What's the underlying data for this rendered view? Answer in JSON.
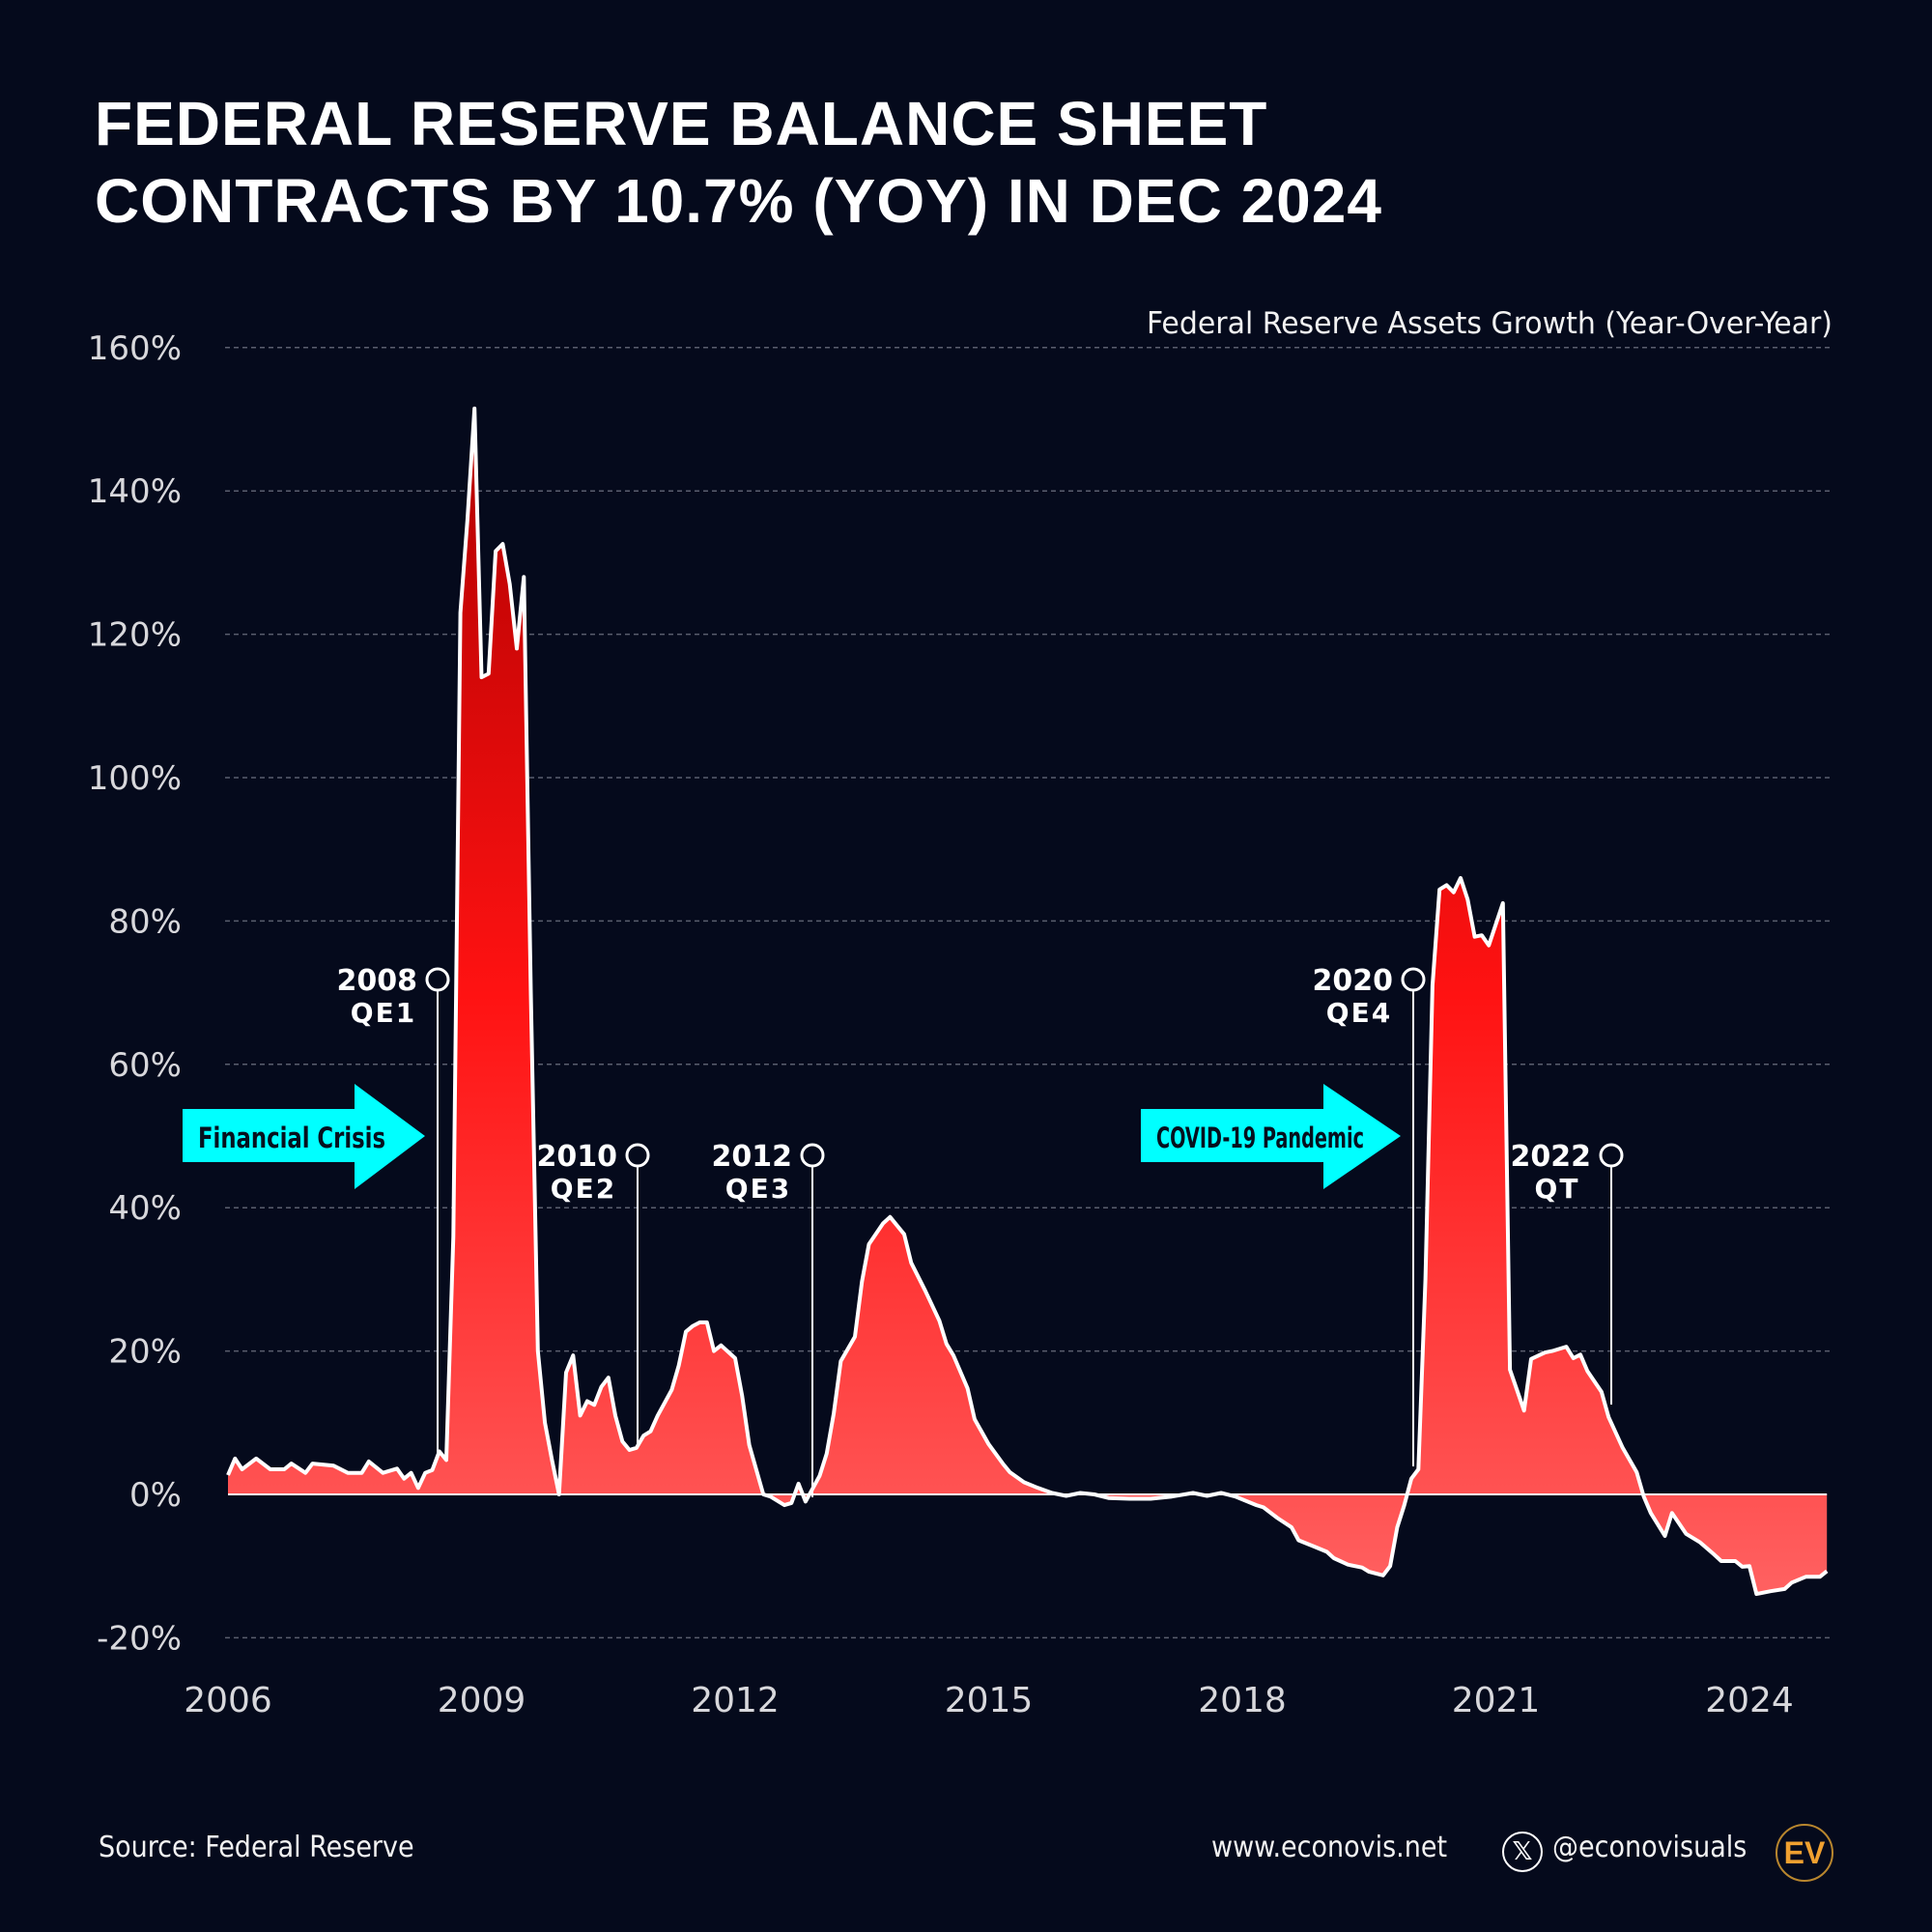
{
  "title": {
    "line1": "FEDERAL RESERVE BALANCE SHEET",
    "line2": "CONTRACTS BY 10.7% (YOY) IN DEC 2024"
  },
  "chart_data": {
    "type": "area",
    "subtitle": "Federal Reserve Assets Growth (Year-Over-Year)",
    "xlabel": "",
    "ylabel": "",
    "ylim": [
      -20,
      160
    ],
    "xlim": [
      "2006-01",
      "2024-12"
    ],
    "grid": true,
    "y_ticks": [
      "160%",
      "140%",
      "120%",
      "100%",
      "80%",
      "60%",
      "40%",
      "20%",
      "0%",
      "-20%"
    ],
    "y_tick_values": [
      160,
      140,
      120,
      100,
      80,
      60,
      40,
      20,
      0,
      -20
    ],
    "x_ticks": [
      "2006",
      "2009",
      "2012",
      "2015",
      "2018",
      "2021",
      "2024"
    ],
    "colors": {
      "fill_top": "#c20000",
      "fill_mid": "#ff1010",
      "fill_bottom": "#ff5a5a",
      "line": "#ffffff",
      "arrow": "#00ffff",
      "background": "#050a1c"
    },
    "series": [
      {
        "points": [
          [
            "2006-01",
            2.7
          ],
          [
            "2006-02",
            5
          ],
          [
            "2006-03",
            3.5
          ],
          [
            "2006-05",
            5
          ],
          [
            "2006-07",
            3.5
          ],
          [
            "2006-09",
            3.5
          ],
          [
            "2006-10",
            4.3
          ],
          [
            "2006-12",
            3
          ],
          [
            "2007-01",
            4.3
          ],
          [
            "2007-04",
            4
          ],
          [
            "2007-06",
            3
          ],
          [
            "2007-08",
            3
          ],
          [
            "2007-09",
            4.6
          ],
          [
            "2007-11",
            3
          ],
          [
            "2008-01",
            3.6
          ],
          [
            "2008-02",
            2.2
          ],
          [
            "2008-03",
            3
          ],
          [
            "2008-04",
            0.9
          ],
          [
            "2008-05",
            3
          ],
          [
            "2008-06",
            3.4
          ],
          [
            "2008-07",
            6
          ],
          [
            "2008-08",
            4.8
          ],
          [
            "2008-09",
            36
          ],
          [
            "2008-10",
            123
          ],
          [
            "2008-11",
            136
          ],
          [
            "2008-12",
            151.5
          ],
          [
            "2009-01",
            114
          ],
          [
            "2009-02",
            114.5
          ],
          [
            "2009-03",
            131.6
          ],
          [
            "2009-04",
            132.6
          ],
          [
            "2009-05",
            127
          ],
          [
            "2009-06",
            118
          ],
          [
            "2009-07",
            128
          ],
          [
            "2009-08",
            70
          ],
          [
            "2009-09",
            20
          ],
          [
            "2009-10",
            10
          ],
          [
            "2009-11",
            4.8
          ],
          [
            "2009-12",
            0
          ],
          [
            "2010-01",
            17
          ],
          [
            "2010-02",
            19.4
          ],
          [
            "2010-03",
            11
          ],
          [
            "2010-04",
            13
          ],
          [
            "2010-05",
            12.5
          ],
          [
            "2010-06",
            15
          ],
          [
            "2010-07",
            16.3
          ],
          [
            "2010-08",
            11
          ],
          [
            "2010-09",
            7.4
          ],
          [
            "2010-10",
            6.2
          ],
          [
            "2010-11",
            6.5
          ],
          [
            "2010-12",
            8.2
          ],
          [
            "2011-01",
            8.8
          ],
          [
            "2011-02",
            11
          ],
          [
            "2011-04",
            14.6
          ],
          [
            "2011-05",
            18
          ],
          [
            "2011-06",
            22.7
          ],
          [
            "2011-07",
            23.5
          ],
          [
            "2011-08",
            24
          ],
          [
            "2011-09",
            24
          ],
          [
            "2011-10",
            20
          ],
          [
            "2011-11",
            20.8
          ],
          [
            "2012-01",
            19
          ],
          [
            "2012-02",
            13.7
          ],
          [
            "2012-03",
            6.9
          ],
          [
            "2012-05",
            0
          ],
          [
            "2012-06",
            -0.3
          ],
          [
            "2012-08",
            -1.5
          ],
          [
            "2012-09",
            -1.2
          ],
          [
            "2012-10",
            1.5
          ],
          [
            "2012-11",
            -1
          ],
          [
            "2013-01",
            2.6
          ],
          [
            "2013-02",
            5.7
          ],
          [
            "2013-03",
            11.3
          ],
          [
            "2013-04",
            18.6
          ],
          [
            "2013-06",
            22
          ],
          [
            "2013-07",
            29.7
          ],
          [
            "2013-08",
            34.9
          ],
          [
            "2013-10",
            37.8
          ],
          [
            "2013-11",
            38.7
          ],
          [
            "2014-01",
            36.3
          ],
          [
            "2014-02",
            32.3
          ],
          [
            "2014-04",
            28.4
          ],
          [
            "2014-06",
            24.2
          ],
          [
            "2014-07",
            21
          ],
          [
            "2014-08",
            19.4
          ],
          [
            "2014-10",
            14.8
          ],
          [
            "2014-11",
            10.5
          ],
          [
            "2015-01",
            7
          ],
          [
            "2015-03",
            4.3
          ],
          [
            "2015-04",
            3.1
          ],
          [
            "2015-06",
            1.7
          ],
          [
            "2015-08",
            0.9
          ],
          [
            "2015-10",
            0.2
          ],
          [
            "2015-12",
            -0.2
          ],
          [
            "2016-02",
            0.2
          ],
          [
            "2016-04",
            0
          ],
          [
            "2016-06",
            -0.5
          ],
          [
            "2016-09",
            -0.6
          ],
          [
            "2016-12",
            -0.6
          ],
          [
            "2017-03",
            -0.3
          ],
          [
            "2017-06",
            0.2
          ],
          [
            "2017-08",
            -0.2
          ],
          [
            "2017-10",
            0.2
          ],
          [
            "2017-12",
            -0.3
          ],
          [
            "2018-03",
            -1.5
          ],
          [
            "2018-04",
            -1.8
          ],
          [
            "2018-06",
            -3.3
          ],
          [
            "2018-08",
            -4.6
          ],
          [
            "2018-09",
            -6.4
          ],
          [
            "2018-11",
            -7.2
          ],
          [
            "2019-01",
            -8
          ],
          [
            "2019-02",
            -8.9
          ],
          [
            "2019-04",
            -9.8
          ],
          [
            "2019-06",
            -10.2
          ],
          [
            "2019-07",
            -10.8
          ],
          [
            "2019-09",
            -11.3
          ],
          [
            "2019-10",
            -10
          ],
          [
            "2019-11",
            -4.6
          ],
          [
            "2019-12",
            -1.5
          ],
          [
            "2020-01",
            2.2
          ],
          [
            "2020-02",
            3.5
          ],
          [
            "2020-03",
            30
          ],
          [
            "2020-04",
            71
          ],
          [
            "2020-05",
            84.4
          ],
          [
            "2020-06",
            85
          ],
          [
            "2020-07",
            84
          ],
          [
            "2020-08",
            86
          ],
          [
            "2020-09",
            83
          ],
          [
            "2020-10",
            77.8
          ],
          [
            "2020-11",
            78
          ],
          [
            "2020-12",
            76.6
          ],
          [
            "2021-02",
            82.5
          ],
          [
            "2021-03",
            17.4
          ],
          [
            "2021-05",
            11.7
          ],
          [
            "2021-06",
            18.9
          ],
          [
            "2021-08",
            19.8
          ],
          [
            "2021-09",
            20
          ],
          [
            "2021-11",
            20.6
          ],
          [
            "2021-12",
            19
          ],
          [
            "2022-01",
            19.5
          ],
          [
            "2022-02",
            17.2
          ],
          [
            "2022-04",
            14.3
          ],
          [
            "2022-05",
            10.8
          ],
          [
            "2022-07",
            6.5
          ],
          [
            "2022-09",
            3.1
          ],
          [
            "2022-10",
            -0.3
          ],
          [
            "2022-11",
            -2.6
          ],
          [
            "2023-01",
            -5.8
          ],
          [
            "2023-02",
            -2.6
          ],
          [
            "2023-04",
            -5.5
          ],
          [
            "2023-06",
            -6.7
          ],
          [
            "2023-08",
            -8.4
          ],
          [
            "2023-09",
            -9.3
          ],
          [
            "2023-11",
            -9.3
          ],
          [
            "2023-12",
            -10.1
          ],
          [
            "2024-01",
            -10
          ],
          [
            "2024-02",
            -13.9
          ],
          [
            "2024-04",
            -13.5
          ],
          [
            "2024-06",
            -13.2
          ],
          [
            "2024-07",
            -12.3
          ],
          [
            "2024-09",
            -11.5
          ],
          [
            "2024-11",
            -11.5
          ],
          [
            "2024-12",
            -10.7
          ]
        ]
      }
    ],
    "annotations": [
      {
        "year": "2008",
        "label": "QE1"
      },
      {
        "year": "2010",
        "label": "QE2"
      },
      {
        "year": "2012",
        "label": "QE3"
      },
      {
        "year": "2020",
        "label": "QE4"
      },
      {
        "year": "2022",
        "label": "QT"
      }
    ],
    "callouts": [
      "Financial Crisis",
      "COVID-19 Pandemic"
    ]
  },
  "footer": {
    "source": "Source: Federal Reserve",
    "website": "www.econovis.net",
    "handle": "@econovisuals",
    "x_icon": "x-logo-icon",
    "logo": "EV"
  }
}
